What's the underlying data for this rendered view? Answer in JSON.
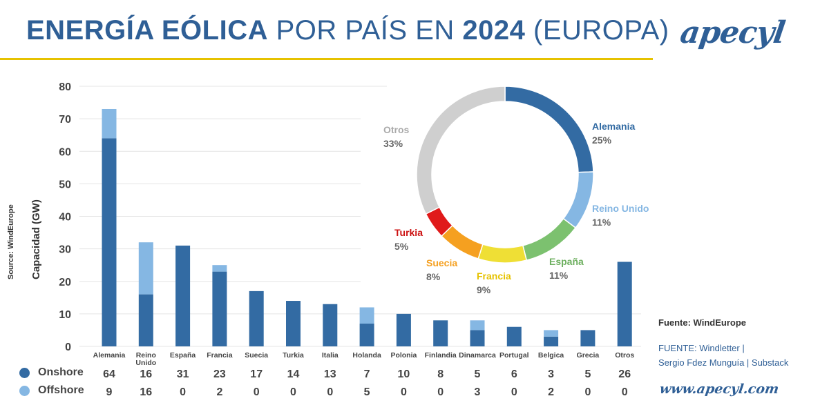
{
  "header": {
    "title_bold1": "ENERGÍA EÓLICA",
    "title_light1": "POR PAÍS EN",
    "title_bold2": "2024",
    "title_light2": "(EUROPA)",
    "logo": "apecyl",
    "logo_url": "www.apecyl.com"
  },
  "side_source": "Source: WindEurope",
  "footer": {
    "fuente1": "Fuente: WindEurope",
    "fuente2_line1": "FUENTE: Windletter |",
    "fuente2_line2": "Sergio Fdez Munguía | Substack"
  },
  "colors": {
    "onshore": "#336ba3",
    "offshore": "#85b7e3",
    "accent": "#e6c200",
    "title": "#2f5f96"
  },
  "chart_data": [
    {
      "type": "bar",
      "stacked": true,
      "ylabel": "Capacidad (GW)",
      "ylim": [
        0,
        80
      ],
      "yticks": [
        0,
        10,
        20,
        30,
        40,
        50,
        60,
        70,
        80
      ],
      "categories": [
        "Alemania",
        "Reino Unido",
        "España",
        "Francia",
        "Suecia",
        "Turkia",
        "Italia",
        "Holanda",
        "Polonia",
        "Finlandia",
        "Dinamarca",
        "Portugal",
        "Belgica",
        "Grecia",
        "Otros"
      ],
      "series": [
        {
          "name": "Onshore",
          "values": [
            64,
            16,
            31,
            23,
            17,
            14,
            13,
            7,
            10,
            8,
            5,
            6,
            3,
            5,
            26
          ]
        },
        {
          "name": "Offshore",
          "values": [
            9,
            16,
            0,
            2,
            0,
            0,
            0,
            5,
            0,
            0,
            3,
            0,
            2,
            0,
            0
          ]
        }
      ]
    },
    {
      "type": "pie",
      "donut": true,
      "labels": [
        "Alemania",
        "Reino Unido",
        "España",
        "Francia",
        "Suecia",
        "Turkia",
        "Otros"
      ],
      "values": [
        25,
        11,
        11,
        9,
        8,
        5,
        33
      ],
      "value_labels": [
        "25%",
        "11%",
        "11%",
        "9%",
        "8%",
        "5%",
        "33%"
      ],
      "colors": [
        "#336ba3",
        "#85b7e3",
        "#7cc16f",
        "#efdf35",
        "#f5a020",
        "#e01a1a",
        "#cfcfcf"
      ],
      "label_colors": [
        "#336ba3",
        "#85b7e3",
        "#6fb061",
        "#e6c200",
        "#f5a020",
        "#cc1111",
        "#aaaaaa"
      ]
    }
  ]
}
